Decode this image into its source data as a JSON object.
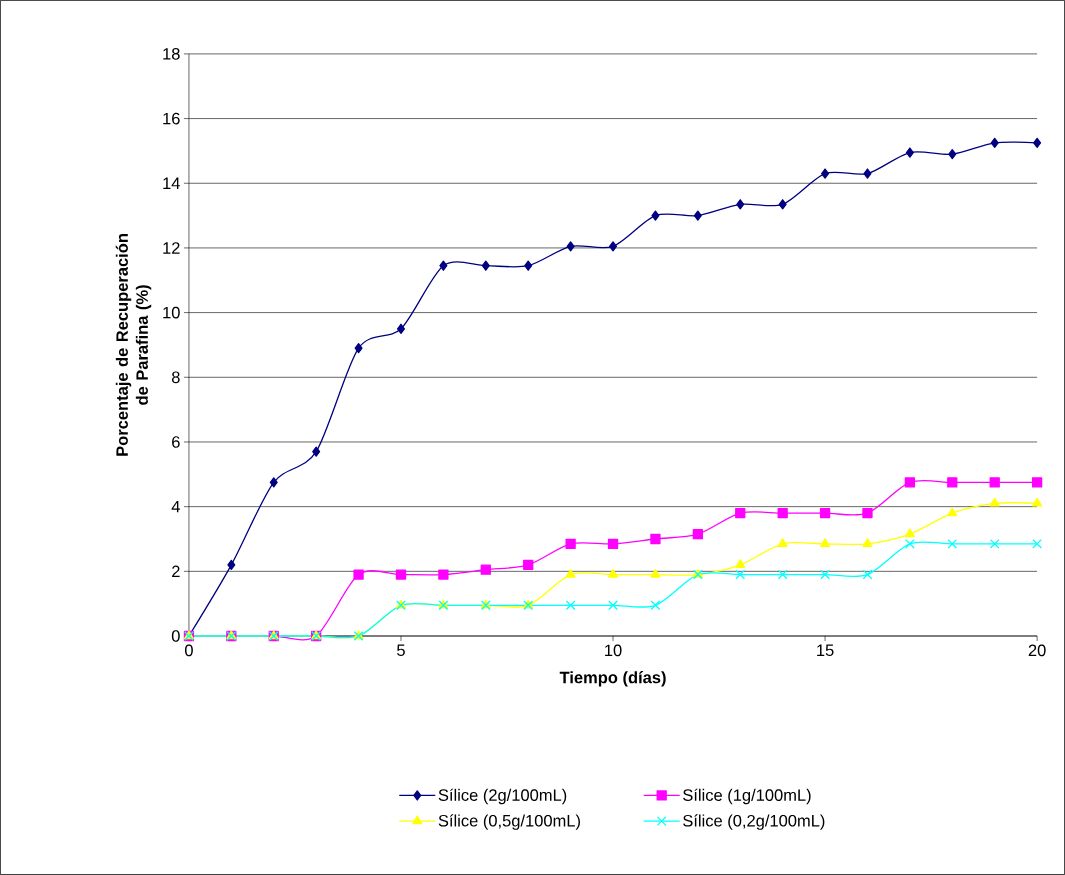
{
  "chart_data": {
    "type": "line",
    "xlabel": "Tiempo (días)",
    "ylabel": "Porcentaje de Recuperación de Parafina (%)",
    "x": [
      0,
      1,
      2,
      3,
      4,
      5,
      6,
      7,
      8,
      9,
      10,
      11,
      12,
      13,
      14,
      15,
      16,
      17,
      18,
      19,
      20
    ],
    "xlim": [
      0,
      20
    ],
    "xticks": [
      0,
      5,
      10,
      15,
      20
    ],
    "ylim": [
      0,
      18
    ],
    "yticks": [
      0,
      2,
      4,
      6,
      8,
      10,
      12,
      14,
      16,
      18
    ],
    "grid": "y",
    "legend": "bottom",
    "line_style": "solid",
    "series": [
      {
        "name": "Sílice (2g/100mL)",
        "color": "#000080",
        "marker": "diamond",
        "values": [
          0,
          2.2,
          4.75,
          5.7,
          8.9,
          9.5,
          11.45,
          11.45,
          11.45,
          12.05,
          12.05,
          13.0,
          13.0,
          13.35,
          13.35,
          14.3,
          14.3,
          14.95,
          14.9,
          15.25,
          15.25
        ]
      },
      {
        "name": "Sílice (1g/100mL)",
        "color": "#ff00ff",
        "marker": "square",
        "values": [
          0,
          0,
          0,
          0,
          1.9,
          1.9,
          1.9,
          2.05,
          2.2,
          2.85,
          2.85,
          3.0,
          3.15,
          3.8,
          3.8,
          3.8,
          3.8,
          4.75,
          4.75,
          4.75,
          4.75
        ]
      },
      {
        "name": "Sílice (0,5g/100mL)",
        "color": "#ffff00",
        "marker": "triangle",
        "values": [
          0,
          0,
          0,
          0,
          0,
          0.95,
          0.95,
          0.95,
          0.95,
          1.9,
          1.9,
          1.9,
          1.9,
          2.2,
          2.85,
          2.85,
          2.85,
          3.15,
          3.8,
          4.1,
          4.1
        ]
      },
      {
        "name": "Sílice (0,2g/100mL)",
        "color": "#00ffff",
        "marker": "cross",
        "values": [
          0,
          0,
          0,
          0,
          0,
          0.95,
          0.95,
          0.95,
          0.95,
          0.95,
          0.95,
          0.95,
          1.9,
          1.9,
          1.9,
          1.9,
          1.9,
          2.85,
          2.85,
          2.85,
          2.85
        ]
      }
    ]
  }
}
